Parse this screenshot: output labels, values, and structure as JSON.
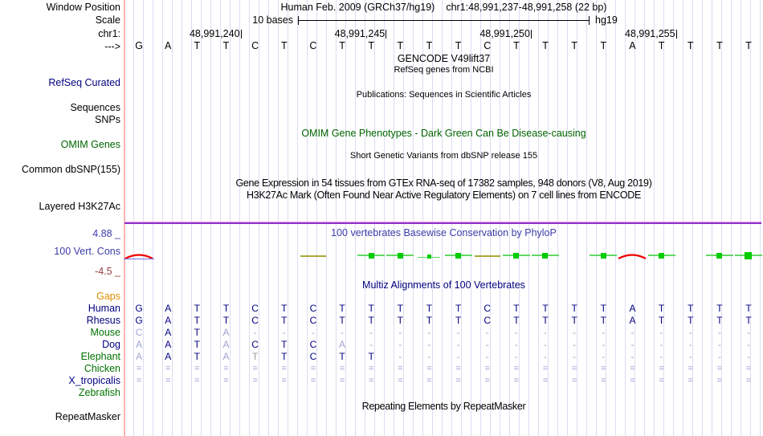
{
  "header": {
    "window_position_label": "Window Position",
    "scale_label": "Scale",
    "chrom_label": "chr1:",
    "strand_label": "--->",
    "title_left": "Human Feb. 2009 (GRCh37/hg19)",
    "title_right": "chr1:48,991,237-48,991,258 (22 bp)",
    "scale_text": "10 bases",
    "assembly": "hg19",
    "ruler_ticks": [
      {
        "label": "48,991,240",
        "col": 4
      },
      {
        "label": "48,991,245",
        "col": 9
      },
      {
        "label": "48,991,250",
        "col": 14
      },
      {
        "label": "48,991,255",
        "col": 19
      }
    ],
    "sequence": [
      "G",
      "A",
      "T",
      "T",
      "C",
      "T",
      "C",
      "T",
      "T",
      "T",
      "T",
      "T",
      "C",
      "T",
      "T",
      "T",
      "T",
      "A",
      "T",
      "T",
      "T",
      "T"
    ]
  },
  "center_titles": {
    "gencode": "GENCODE V49lift37",
    "refseq_ncbi": "RefSeq genes from NCBI",
    "publications": "Publications: Sequences in Scientific Articles",
    "omim": "OMIM Gene Phenotypes - Dark Green Can Be Disease-causing",
    "dbsnp": "Short Genetic Variants from dbSNP release 155",
    "gtex": "Gene Expression in 54 tissues from GTEx RNA-seq of 17382 samples, 948 donors (V8, Aug 2019)",
    "h3k27ac": "H3K27Ac Mark (Often Found Near Active Regulatory Elements) on 7 cell lines from ENCODE",
    "phylop": "100 vertebrates Basewise Conservation by PhyloP",
    "multiz": "Multiz Alignments of 100 Vertebrates",
    "repeatmasker": "Repeating Elements by RepeatMasker"
  },
  "left_labels": {
    "refseq_curated": "RefSeq Curated",
    "sequences": "Sequences",
    "snps": "SNPs",
    "omim_genes": "OMIM Genes",
    "common_dbsnp": "Common dbSNP(155)",
    "layered_h3k27ac": "Layered H3K27Ac",
    "cons_max": "4.88 _",
    "vert_cons": "100 Vert. Cons",
    "cons_min": "-4.5 _",
    "repeatmasker": "RepeatMasker"
  },
  "conservation": {
    "marks": [
      {
        "col": 1,
        "type": "red_blue"
      },
      {
        "col": 7,
        "type": "olive"
      },
      {
        "col": 9,
        "type": "green"
      },
      {
        "col": 10,
        "type": "green"
      },
      {
        "col": 11,
        "type": "green_small"
      },
      {
        "col": 12,
        "type": "green"
      },
      {
        "col": 13,
        "type": "olive"
      },
      {
        "col": 14,
        "type": "green"
      },
      {
        "col": 15,
        "type": "green"
      },
      {
        "col": 17,
        "type": "green"
      },
      {
        "col": 18,
        "type": "red"
      },
      {
        "col": 19,
        "type": "green"
      },
      {
        "col": 21,
        "type": "green"
      },
      {
        "col": 22,
        "type": "green_large"
      }
    ]
  },
  "alignment": {
    "rows": [
      {
        "label": "Gaps",
        "label_color": "orange",
        "cells": [],
        "shades": []
      },
      {
        "label": "Human",
        "label_color": "navy",
        "cells": [
          "G",
          "A",
          "T",
          "T",
          "C",
          "T",
          "C",
          "T",
          "T",
          "T",
          "T",
          "T",
          "C",
          "T",
          "T",
          "T",
          "T",
          "A",
          "T",
          "T",
          "T",
          "T"
        ],
        "shades": [
          "d",
          "d",
          "d",
          "d",
          "d",
          "d",
          "d",
          "d",
          "d",
          "d",
          "d",
          "d",
          "d",
          "d",
          "d",
          "d",
          "d",
          "d",
          "d",
          "d",
          "d",
          "d"
        ]
      },
      {
        "label": "Rhesus",
        "label_color": "navy",
        "cells": [
          "G",
          "A",
          "T",
          "T",
          "C",
          "T",
          "C",
          "T",
          "T",
          "T",
          "T",
          "T",
          "C",
          "T",
          "T",
          "T",
          "T",
          "A",
          "T",
          "T",
          "T",
          "T"
        ],
        "shades": [
          "d",
          "d",
          "d",
          "d",
          "d",
          "d",
          "d",
          "d",
          "d",
          "d",
          "d",
          "d",
          "d",
          "d",
          "d",
          "d",
          "d",
          "d",
          "d",
          "d",
          "d",
          "d"
        ]
      },
      {
        "label": "Mouse",
        "label_color": "green",
        "cells": [
          "C",
          "A",
          "T",
          "A",
          "-",
          "-",
          "-",
          "-",
          "-",
          "-",
          "-",
          "-",
          "-",
          "-",
          "-",
          "-",
          "-",
          "-",
          "-",
          "-",
          "-",
          "-"
        ],
        "shades": [
          "l",
          "d",
          "d",
          "l",
          "l",
          "l",
          "l",
          "l",
          "l",
          "l",
          "l",
          "l",
          "l",
          "l",
          "l",
          "l",
          "l",
          "l",
          "l",
          "l",
          "l",
          "l"
        ]
      },
      {
        "label": "Dog",
        "label_color": "navy",
        "cells": [
          "A",
          "A",
          "T",
          "A",
          "C",
          "T",
          "C",
          "A",
          "-",
          "-",
          "-",
          "-",
          "-",
          "-",
          "-",
          "-",
          "-",
          "-",
          "-",
          "-",
          "-",
          "-"
        ],
        "shades": [
          "l",
          "d",
          "d",
          "l",
          "d",
          "d",
          "d",
          "l",
          "l",
          "l",
          "l",
          "l",
          "l",
          "l",
          "l",
          "l",
          "l",
          "l",
          "l",
          "l",
          "l",
          "l"
        ]
      },
      {
        "label": "Elephant",
        "label_color": "green",
        "cells": [
          "A",
          "A",
          "T",
          "A",
          "T",
          "T",
          "C",
          "T",
          "T",
          "-",
          "-",
          "-",
          "-",
          "-",
          "-",
          "-",
          "-",
          "-",
          "-",
          "-",
          "-",
          "-"
        ],
        "shades": [
          "l",
          "d",
          "d",
          "l",
          "g",
          "d",
          "d",
          "d",
          "d",
          "l",
          "l",
          "l",
          "l",
          "l",
          "l",
          "l",
          "l",
          "l",
          "l",
          "l",
          "l",
          "l"
        ]
      },
      {
        "label": "Chicken",
        "label_color": "green",
        "cells": [
          "=",
          "=",
          "=",
          "=",
          "=",
          "=",
          "=",
          "=",
          "=",
          "=",
          "=",
          "=",
          "=",
          "=",
          "=",
          "=",
          "=",
          "=",
          "=",
          "=",
          "=",
          "="
        ],
        "shades": [
          "e",
          "e",
          "e",
          "e",
          "e",
          "e",
          "e",
          "e",
          "e",
          "e",
          "e",
          "e",
          "e",
          "e",
          "e",
          "e",
          "e",
          "e",
          "e",
          "e",
          "e",
          "e"
        ]
      },
      {
        "label": "X_tropicalis",
        "label_color": "navy",
        "cells": [
          "=",
          "=",
          "=",
          "=",
          "=",
          "=",
          "=",
          "=",
          "=",
          "=",
          "=",
          "=",
          "=",
          "=",
          "=",
          "=",
          "=",
          "=",
          "=",
          "=",
          "=",
          "="
        ],
        "shades": [
          "e",
          "e",
          "e",
          "e",
          "e",
          "e",
          "e",
          "e",
          "e",
          "e",
          "e",
          "e",
          "e",
          "e",
          "e",
          "e",
          "e",
          "e",
          "e",
          "e",
          "e",
          "e"
        ]
      },
      {
        "label": "Zebrafish",
        "label_color": "green",
        "cells": [],
        "shades": []
      }
    ]
  },
  "colors": {
    "navy": "#000080",
    "green_label": "#007200",
    "dark_green": "#006400",
    "orange": "#e09000",
    "light_base": "#9fa3cf",
    "gray_base": "#9b9b9b",
    "equals": "#8f8fcd",
    "cons_green_square": "#00cc00",
    "cons_green_line": "#63d763",
    "cons_olive": "#a8a832",
    "cons_red": "#ee0000",
    "cons_blue_underline": "#7070e8",
    "grid": "#dcdcf2",
    "pink_guide": "#ffb3b3",
    "purple_separator": "#8b34c9"
  }
}
